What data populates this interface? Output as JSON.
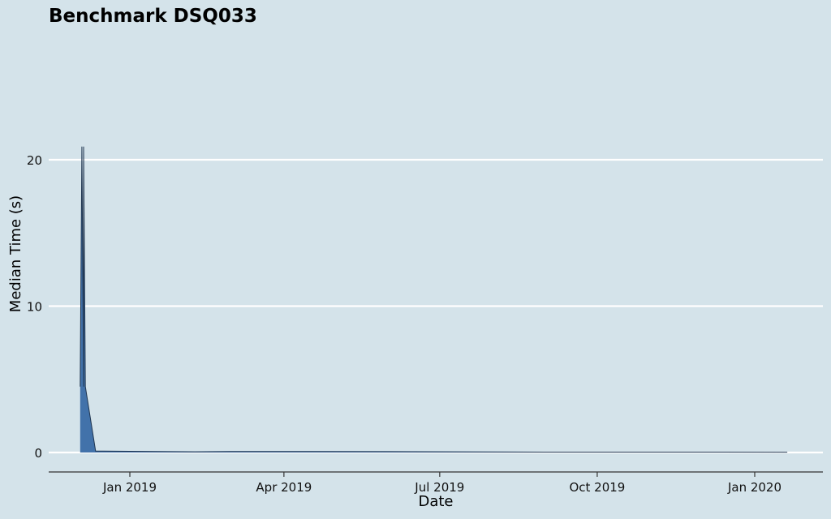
{
  "chart_data": {
    "type": "area",
    "title": "Benchmark DSQ033",
    "xlabel": "Date",
    "ylabel": "Median Time (s)",
    "ylim": [
      -1.3,
      20
    ],
    "xlim": [
      "2018-12-03",
      "2020-01-31"
    ],
    "grid": "horizontal",
    "legend": "none",
    "colors": {
      "fill": "#4272aa",
      "line": "#1f3550",
      "grid": "#ffffff",
      "background": "#d4e3ea"
    },
    "x_ticks": [
      {
        "label": "Jan 2019",
        "date": "2019-01-01"
      },
      {
        "label": "Apr 2019",
        "date": "2019-04-01"
      },
      {
        "label": "Jul 2019",
        "date": "2019-07-01"
      },
      {
        "label": "Oct 2019",
        "date": "2019-10-01"
      },
      {
        "label": "Jan 2020",
        "date": "2020-01-01"
      }
    ],
    "y_ticks": [
      0,
      10,
      20
    ],
    "series": [
      {
        "x": [
          "2018-12-03",
          "2018-12-04",
          "2018-12-05",
          "2018-12-05",
          "2018-12-06",
          "2018-12-12",
          "2019-02-08",
          "2019-03-01",
          "2019-06-01",
          "2019-09-01",
          "2019-12-01",
          "2020-01-20"
        ],
        "y": [
          4.5,
          20.9,
          4.5,
          20.9,
          4.5,
          0.1,
          0.05,
          0.07,
          0.06,
          0.03,
          0.03,
          0.02
        ]
      }
    ]
  }
}
